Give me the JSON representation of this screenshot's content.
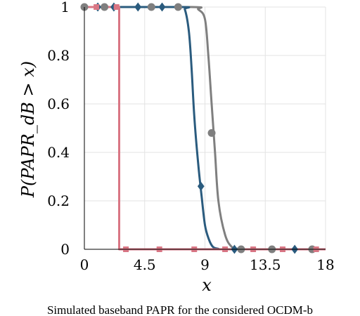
{
  "chart_data": {
    "type": "line",
    "title": "",
    "xlabel": "x",
    "ylabel": "P(PAPR_dB > x)",
    "xlim": [
      0,
      18
    ],
    "ylim": [
      0,
      1
    ],
    "x_ticks": [
      "0",
      "4.5",
      "9",
      "13.5",
      "18"
    ],
    "y_ticks": [
      "0",
      "0.2",
      "0.4",
      "0.6",
      "0.8",
      "1"
    ],
    "grid": true,
    "legend": "none",
    "series": [
      {
        "color": "#7f7f7f",
        "marker": "circle",
        "x": [
          0,
          8.0,
          8.5,
          9.0,
          9.25,
          9.5,
          9.75,
          10.0,
          10.5,
          11.0,
          11.5,
          12.0,
          18
        ],
        "y": [
          1,
          1,
          0.99,
          0.95,
          0.8,
          0.6,
          0.4,
          0.2,
          0.06,
          0.01,
          0.002,
          0,
          0
        ],
        "markers_x": [
          0,
          1.5,
          5.0,
          7.0,
          9.5,
          11.7,
          14.0,
          17.0
        ],
        "markers_y": [
          1,
          1,
          1,
          1,
          0.48,
          0,
          0,
          0
        ]
      },
      {
        "color": "#2a5b7e",
        "marker": "diamond",
        "x": [
          0,
          7.2,
          7.5,
          7.8,
          8.0,
          8.2,
          8.5,
          8.75,
          9.0,
          9.3,
          9.6,
          10.0,
          10.5,
          18
        ],
        "y": [
          1,
          1,
          0.99,
          0.9,
          0.75,
          0.55,
          0.35,
          0.22,
          0.1,
          0.04,
          0.01,
          0.002,
          0,
          0
        ],
        "markers_x": [
          1.0,
          2.2,
          4.0,
          5.8,
          8.7,
          11.2,
          15.7
        ],
        "markers_y": [
          1,
          1,
          1,
          1,
          0.26,
          0,
          0
        ]
      },
      {
        "color": "#d97684",
        "marker": "square",
        "x": [
          0,
          2.6,
          2.6,
          18
        ],
        "y": [
          1,
          1,
          0,
          0
        ],
        "markers_x": [
          0.9,
          2.4,
          3.1,
          5.6,
          8.2,
          10.5,
          12.6,
          14.8,
          17.3
        ],
        "markers_y": [
          1,
          1,
          0,
          0,
          0,
          0,
          0,
          0,
          0
        ]
      }
    ]
  },
  "caption": "Simulated baseband PAPR for the considered OCDM-b"
}
